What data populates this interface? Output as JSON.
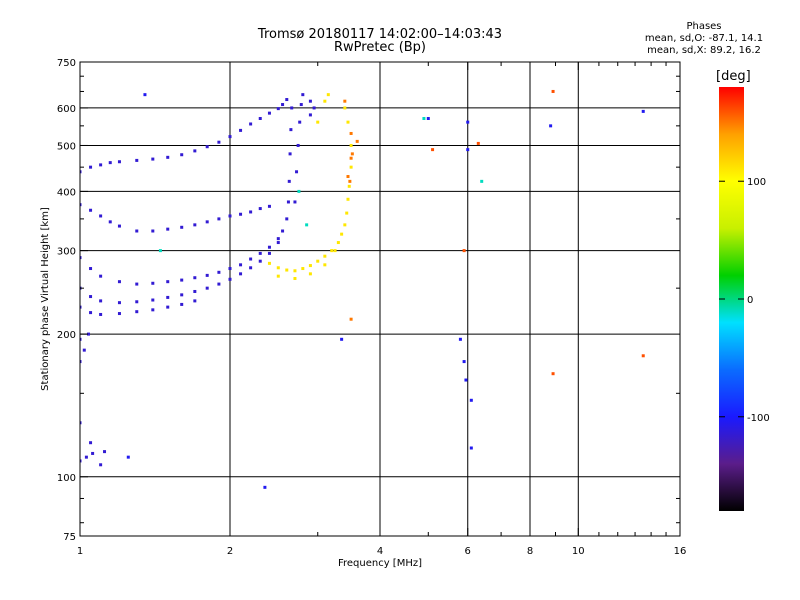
{
  "titles": {
    "line1": "Tromsø 20180117 14:02:00–14:03:43",
    "line2": "RwPretec (Bp)"
  },
  "phases_box": {
    "heading": "Phases",
    "line_o": "mean, sd,O: -87.1, 14.1",
    "line_x": "mean, sd,X: 89.2, 16.2"
  },
  "colorbar": {
    "label": "[deg]",
    "ticks": [
      {
        "value": 100,
        "label": "100"
      },
      {
        "value": 0,
        "label": "0"
      },
      {
        "value": -100,
        "label": "-100"
      }
    ],
    "range": [
      -180,
      180
    ],
    "colors": [
      "#000000",
      "#5b1d8a",
      "#1a1aff",
      "#0a6cff",
      "#00e0ff",
      "#00d000",
      "#c8f000",
      "#ffff00",
      "#ffa000",
      "#ff0000"
    ]
  },
  "chart_data": {
    "type": "scatter",
    "title": "Tromsø 20180117 14:02:00–14:03:43",
    "subtitle": "RwPretec (Bp)",
    "xlabel": "Frequency [MHz]",
    "ylabel": "Stationary phase Virtual Height [km]",
    "x_scale": "log",
    "y_scale": "log",
    "xlim": [
      1,
      16
    ],
    "ylim": [
      75,
      750
    ],
    "x_ticks": [
      {
        "value": 1,
        "label": "1"
      },
      {
        "value": 2,
        "label": "2"
      },
      {
        "value": 4,
        "label": "4"
      },
      {
        "value": 6,
        "label": "6"
      },
      {
        "value": 8,
        "label": "8"
      },
      {
        "value": 10,
        "label": "10"
      },
      {
        "value": 16,
        "label": "16"
      }
    ],
    "y_ticks": [
      {
        "value": 75,
        "label": "75"
      },
      {
        "value": 100,
        "label": "100"
      },
      {
        "value": 200,
        "label": "200"
      },
      {
        "value": 300,
        "label": "300"
      },
      {
        "value": 400,
        "label": "400"
      },
      {
        "value": 500,
        "label": "500"
      },
      {
        "value": 600,
        "label": "600"
      },
      {
        "value": 750,
        "label": "750"
      }
    ],
    "x_gridlines": [
      2,
      4,
      6,
      8,
      10
    ],
    "y_gridlines": [
      100,
      200,
      300,
      400,
      500,
      600
    ],
    "grid": true,
    "color_scale": "phase in degrees",
    "series": [
      {
        "points": [
          [
            1.0,
            440
          ],
          [
            1.05,
            450
          ],
          [
            1.1,
            455
          ],
          [
            1.15,
            460
          ],
          [
            1.2,
            462
          ],
          [
            1.3,
            465
          ],
          [
            1.4,
            468
          ],
          [
            1.5,
            472
          ],
          [
            1.6,
            478
          ],
          [
            1.7,
            487
          ],
          [
            1.8,
            497
          ],
          [
            1.9,
            508
          ],
          [
            2.0,
            522
          ],
          [
            2.1,
            538
          ],
          [
            2.2,
            555
          ],
          [
            2.3,
            570
          ],
          [
            2.4,
            585
          ],
          [
            2.5,
            598
          ],
          [
            2.55,
            610
          ],
          [
            2.6,
            625
          ],
          [
            1.0,
            375
          ],
          [
            1.05,
            365
          ],
          [
            1.1,
            355
          ],
          [
            1.15,
            345
          ],
          [
            1.2,
            338
          ],
          [
            1.3,
            330
          ],
          [
            1.4,
            330
          ],
          [
            1.5,
            333
          ],
          [
            1.6,
            336
          ],
          [
            1.7,
            340
          ],
          [
            1.8,
            345
          ],
          [
            1.9,
            350
          ],
          [
            2.0,
            355
          ],
          [
            2.1,
            358
          ],
          [
            2.2,
            362
          ],
          [
            2.3,
            368
          ],
          [
            2.4,
            372
          ],
          [
            1.0,
            290
          ],
          [
            1.05,
            275
          ],
          [
            1.1,
            265
          ],
          [
            1.2,
            258
          ],
          [
            1.3,
            255
          ],
          [
            1.4,
            256
          ],
          [
            1.5,
            258
          ],
          [
            1.6,
            260
          ],
          [
            1.7,
            263
          ],
          [
            1.8,
            266
          ],
          [
            1.9,
            270
          ],
          [
            2.0,
            275
          ],
          [
            2.1,
            280
          ],
          [
            2.2,
            288
          ],
          [
            2.3,
            296
          ],
          [
            2.4,
            305
          ],
          [
            2.5,
            318
          ],
          [
            2.55,
            330
          ],
          [
            2.6,
            350
          ],
          [
            2.62,
            380
          ],
          [
            2.63,
            420
          ],
          [
            2.64,
            480
          ],
          [
            2.65,
            540
          ],
          [
            2.66,
            600
          ],
          [
            1.0,
            250
          ],
          [
            1.05,
            240
          ],
          [
            1.1,
            235
          ],
          [
            1.2,
            233
          ],
          [
            1.3,
            234
          ],
          [
            1.4,
            236
          ],
          [
            1.5,
            239
          ],
          [
            1.6,
            242
          ],
          [
            1.7,
            246
          ],
          [
            1.8,
            250
          ],
          [
            1.9,
            255
          ],
          [
            2.0,
            261
          ],
          [
            2.1,
            268
          ],
          [
            2.2,
            276
          ],
          [
            2.3,
            285
          ],
          [
            2.4,
            296
          ],
          [
            2.5,
            312
          ],
          [
            1.0,
            228
          ],
          [
            1.05,
            222
          ],
          [
            1.1,
            220
          ],
          [
            1.2,
            221
          ],
          [
            1.3,
            223
          ],
          [
            1.4,
            225
          ],
          [
            1.5,
            228
          ],
          [
            1.6,
            231
          ],
          [
            1.7,
            235
          ],
          [
            2.7,
            380
          ],
          [
            2.72,
            440
          ],
          [
            2.74,
            500
          ],
          [
            2.76,
            560
          ],
          [
            2.78,
            610
          ],
          [
            2.8,
            640
          ],
          [
            2.9,
            620
          ],
          [
            2.95,
            600
          ],
          [
            2.9,
            580
          ],
          [
            1.0,
            195
          ],
          [
            1.02,
            185
          ],
          [
            1.04,
            200
          ],
          [
            1.0,
            175
          ],
          [
            1.0,
            108
          ],
          [
            1.03,
            110
          ],
          [
            1.06,
            112
          ],
          [
            1.1,
            106
          ],
          [
            1.12,
            113
          ],
          [
            1.0,
            130
          ],
          [
            1.05,
            118
          ]
        ],
        "phase": -115
      },
      {
        "points": [
          [
            2.4,
            282
          ],
          [
            2.5,
            276
          ],
          [
            2.6,
            273
          ],
          [
            2.7,
            272
          ],
          [
            2.8,
            275
          ],
          [
            2.9,
            279
          ],
          [
            3.0,
            285
          ],
          [
            3.1,
            292
          ],
          [
            3.2,
            300
          ],
          [
            3.3,
            312
          ],
          [
            3.35,
            325
          ],
          [
            3.4,
            340
          ],
          [
            3.43,
            360
          ],
          [
            3.45,
            385
          ],
          [
            3.47,
            410
          ],
          [
            3.5,
            450
          ],
          [
            3.5,
            500
          ],
          [
            3.45,
            560
          ],
          [
            3.4,
            600
          ],
          [
            2.5,
            265
          ],
          [
            2.7,
            262
          ],
          [
            2.9,
            268
          ],
          [
            3.1,
            280
          ],
          [
            3.25,
            300
          ],
          [
            3.0,
            560
          ],
          [
            3.1,
            620
          ],
          [
            3.15,
            640
          ]
        ],
        "phase": 110
      },
      {
        "points": [
          [
            3.45,
            430
          ],
          [
            3.5,
            470
          ],
          [
            3.48,
            420
          ],
          [
            3.52,
            480
          ],
          [
            3.5,
            530
          ],
          [
            3.4,
            620
          ],
          [
            3.6,
            510
          ],
          [
            3.5,
            215
          ]
        ],
        "phase": 150
      },
      {
        "points": [
          [
            1.35,
            640
          ],
          [
            5.0,
            570
          ],
          [
            5.8,
            195
          ],
          [
            5.9,
            175
          ],
          [
            5.95,
            160
          ],
          [
            6.0,
            560
          ],
          [
            6.0,
            490
          ],
          [
            6.1,
            145
          ],
          [
            6.1,
            115
          ],
          [
            8.8,
            550
          ],
          [
            13.5,
            590
          ],
          [
            2.35,
            95
          ],
          [
            3.35,
            195
          ],
          [
            1.25,
            110
          ]
        ],
        "phase": -105
      },
      {
        "points": [
          [
            6.4,
            420
          ],
          [
            2.75,
            400
          ],
          [
            2.85,
            340
          ],
          [
            1.45,
            300
          ],
          [
            4.9,
            570
          ]
        ],
        "phase": -10
      },
      {
        "points": [
          [
            5.1,
            490
          ],
          [
            6.3,
            505
          ],
          [
            13.5,
            180
          ],
          [
            5.9,
            300
          ],
          [
            8.9,
            165
          ],
          [
            8.9,
            650
          ]
        ],
        "phase": 160
      }
    ]
  }
}
